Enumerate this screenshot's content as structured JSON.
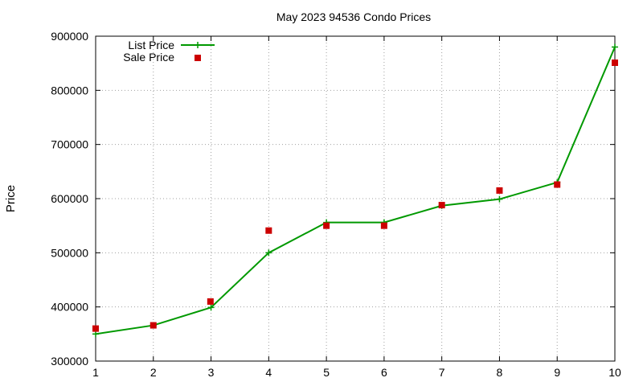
{
  "chart_data": {
    "type": "line",
    "title": "May 2023 94536 Condo Prices",
    "xlabel": "",
    "ylabel": "Price",
    "xlim": [
      1,
      10
    ],
    "ylim": [
      300000,
      900000
    ],
    "x_ticks": [
      1,
      2,
      3,
      4,
      5,
      6,
      7,
      8,
      9,
      10
    ],
    "y_ticks": [
      300000,
      400000,
      500000,
      600000,
      700000,
      800000,
      900000
    ],
    "grid": true,
    "legend_position": "top-left",
    "series": [
      {
        "name": "List Price",
        "style": "lines+crosses",
        "color": "#009900",
        "x": [
          1,
          2,
          3,
          4,
          5,
          6,
          7,
          8,
          9,
          10
        ],
        "y": [
          350000,
          366000,
          399000,
          500000,
          556000,
          556000,
          587000,
          599000,
          630000,
          880000
        ]
      },
      {
        "name": "Sale Price",
        "style": "squares",
        "color": "#cc0000",
        "x": [
          1,
          2,
          2.99,
          4,
          5,
          6,
          7,
          8,
          9,
          10
        ],
        "y": [
          360000,
          366000,
          410000,
          541000,
          550000,
          550000,
          588000,
          615000,
          626000,
          851000
        ]
      }
    ]
  }
}
